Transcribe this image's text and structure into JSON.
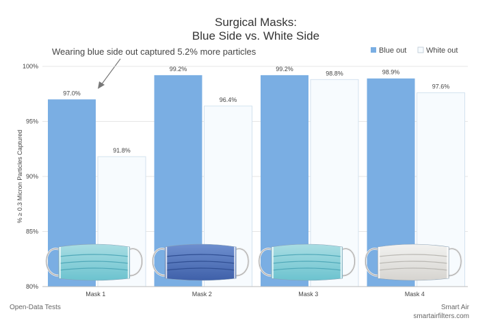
{
  "chart_data": {
    "type": "bar",
    "title": [
      "Surgical Masks:",
      "Blue Side vs. White Side"
    ],
    "annotation": "Wearing blue side out captured 5.2% more particles",
    "ylabel": "% ≥ 0.3 Micron Particles Captured",
    "xlabel": "",
    "categories": [
      "Mask 1",
      "Mask 2",
      "Mask 3",
      "Mask 4"
    ],
    "series": [
      {
        "name": "Blue out",
        "values": [
          97.0,
          99.2,
          99.2,
          98.9
        ],
        "labels": [
          "97.0%",
          "99.2%",
          "99.2%",
          "98.9%"
        ],
        "color": "#7aaee3"
      },
      {
        "name": "White out",
        "values": [
          91.8,
          96.4,
          98.8,
          97.6
        ],
        "labels": [
          "91.8%",
          "96.4%",
          "98.8%",
          "97.6%"
        ],
        "color": "#f7fbfe"
      }
    ],
    "ylim": [
      80,
      100
    ],
    "yticks": [
      80,
      85,
      90,
      95,
      100
    ],
    "ytick_labels": [
      "80%",
      "85%",
      "90%",
      "95%",
      "100%"
    ],
    "grid": true,
    "legend_position": "top-right",
    "mask_images": [
      "blue-pleated-mask",
      "dark-blue-mask",
      "blue-pleated-mask",
      "white-mask"
    ]
  },
  "footer": {
    "left": "Open-Data Tests",
    "brand": "Smart Air",
    "url": "smartairfilters.com"
  }
}
